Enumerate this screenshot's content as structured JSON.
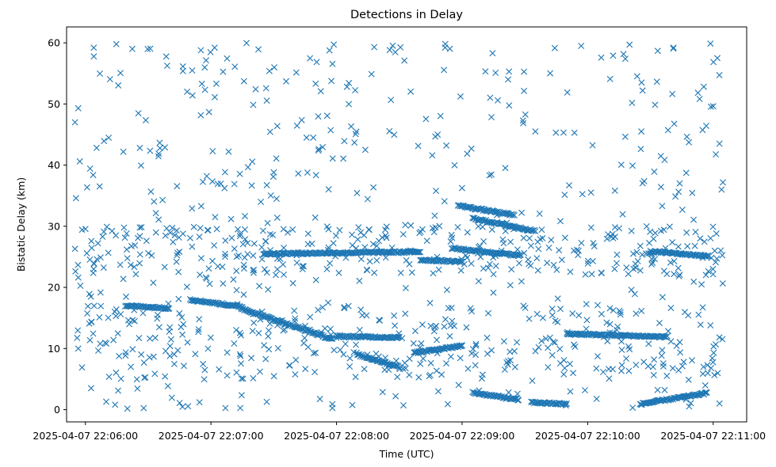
{
  "chart_data": {
    "type": "scatter",
    "title": "Detections in Delay",
    "xlabel": "Time (UTC)",
    "ylabel": "Bistatic Delay (km)",
    "marker": "x",
    "color": "#1f77b4",
    "grid": false,
    "x_ticks": [
      {
        "value": "2025-04-07 22:06:00",
        "label": "2025-04-07 22:06:00"
      },
      {
        "value": "2025-04-07 22:07:00",
        "label": "2025-04-07 22:07:00"
      },
      {
        "value": "2025-04-07 22:08:00",
        "label": "2025-04-07 22:08:00"
      },
      {
        "value": "2025-04-07 22:09:00",
        "label": "2025-04-07 22:09:00"
      },
      {
        "value": "2025-04-07 22:10:00",
        "label": "2025-04-07 22:10:00"
      },
      {
        "value": "2025-04-07 22:11:00",
        "label": "2025-04-07 22:11:00"
      }
    ],
    "y_ticks": [
      0,
      10,
      20,
      30,
      40,
      50,
      60
    ],
    "xlim": [
      "2025-04-07 22:05:51",
      "2025-04-07 22:11:16"
    ],
    "ylim": [
      -2.0,
      62.6
    ],
    "tracks": [
      {
        "x_start": "2025-04-07 22:06:19",
        "x_end": "2025-04-07 22:06:40",
        "y_start": 17.0,
        "y_end": 16.6
      },
      {
        "x_start": "2025-04-07 22:06:50",
        "x_end": "2025-04-07 22:07:15",
        "y_start": 18.0,
        "y_end": 16.8
      },
      {
        "x_start": "2025-04-07 22:07:15",
        "x_end": "2025-04-07 22:07:58",
        "y_start": 16.5,
        "y_end": 11.5
      },
      {
        "x_start": "2025-04-07 22:08:00",
        "x_end": "2025-04-07 22:08:30",
        "y_start": 12.0,
        "y_end": 11.8
      },
      {
        "x_start": "2025-04-07 22:08:10",
        "x_end": "2025-04-07 22:08:30",
        "y_start": 9.0,
        "y_end": 7.0
      },
      {
        "x_start": "2025-04-07 22:07:25",
        "x_end": "2025-04-07 22:08:40",
        "y_start": 25.5,
        "y_end": 25.8
      },
      {
        "x_start": "2025-04-07 22:08:40",
        "x_end": "2025-04-07 22:09:00",
        "y_start": 24.5,
        "y_end": 24.2
      },
      {
        "x_start": "2025-04-07 22:08:58",
        "x_end": "2025-04-07 22:09:25",
        "y_start": 33.4,
        "y_end": 31.8
      },
      {
        "x_start": "2025-04-07 22:09:05",
        "x_end": "2025-04-07 22:09:35",
        "y_start": 31.3,
        "y_end": 29.2
      },
      {
        "x_start": "2025-04-07 22:08:55",
        "x_end": "2025-04-07 22:09:28",
        "y_start": 26.4,
        "y_end": 25.2
      },
      {
        "x_start": "2025-04-07 22:09:05",
        "x_end": "2025-04-07 22:09:27",
        "y_start": 2.8,
        "y_end": 1.6
      },
      {
        "x_start": "2025-04-07 22:09:33",
        "x_end": "2025-04-07 22:09:50",
        "y_start": 1.2,
        "y_end": 0.9
      },
      {
        "x_start": "2025-04-07 22:09:50",
        "x_end": "2025-04-07 22:10:38",
        "y_start": 12.4,
        "y_end": 11.9
      },
      {
        "x_start": "2025-04-07 22:10:25",
        "x_end": "2025-04-07 22:10:57",
        "y_start": 0.9,
        "y_end": 2.7
      },
      {
        "x_start": "2025-04-07 22:10:30",
        "x_end": "2025-04-07 22:10:58",
        "y_start": 25.9,
        "y_end": 25.1
      },
      {
        "x_start": "2025-04-07 22:08:37",
        "x_end": "2025-04-07 22:09:00",
        "y_start": 9.3,
        "y_end": 10.4
      }
    ],
    "extra_points": [
      {
        "x": "2025-04-07 22:05:55",
        "y": 47.0
      },
      {
        "x": "2025-04-07 22:05:55",
        "y": 26.3
      },
      {
        "x": "2025-04-07 22:06:04",
        "y": 59.2
      },
      {
        "x": "2025-04-07 22:06:06",
        "y": 27.2
      },
      {
        "x": "2025-04-07 22:06:10",
        "y": 10.8
      },
      {
        "x": "2025-04-07 22:06:26",
        "y": 42.8
      },
      {
        "x": "2025-04-07 22:06:26",
        "y": 29.8
      },
      {
        "x": "2025-04-07 22:06:38",
        "y": 42.9
      },
      {
        "x": "2025-04-07 22:06:58",
        "y": 38.2
      },
      {
        "x": "2025-04-07 22:07:30",
        "y": 38.8
      },
      {
        "x": "2025-04-07 22:07:50",
        "y": 53.3
      },
      {
        "x": "2025-04-07 22:08:05",
        "y": 52.8
      },
      {
        "x": "2025-04-07 22:08:18",
        "y": 59.3
      },
      {
        "x": "2025-04-07 22:08:52",
        "y": 59.8
      },
      {
        "x": "2025-04-07 22:09:22",
        "y": 54.0
      },
      {
        "x": "2025-04-07 22:09:35",
        "y": 45.5
      },
      {
        "x": "2025-04-07 22:10:20",
        "y": 59.7
      },
      {
        "x": "2025-04-07 22:10:44",
        "y": 37.0
      },
      {
        "x": "2025-04-07 22:11:04",
        "y": 36.0
      },
      {
        "x": "2025-04-07 22:11:03",
        "y": 43.5
      },
      {
        "x": "2025-04-07 22:11:02",
        "y": 57.5
      },
      {
        "x": "2025-04-07 22:11:03",
        "y": 1.0
      },
      {
        "x": "2025-04-07 22:10:59",
        "y": 6.8
      },
      {
        "x": "2025-04-07 22:06:45",
        "y": 1.1
      },
      {
        "x": "2025-04-07 22:07:58",
        "y": 0.9
      },
      {
        "x": "2025-04-07 22:08:32",
        "y": 0.7
      }
    ],
    "scatter_noise": {
      "approx_count": 1000,
      "x_range": [
        "2025-04-07 22:05:55",
        "2025-04-07 22:11:05"
      ],
      "y_range": [
        0,
        60
      ]
    }
  }
}
